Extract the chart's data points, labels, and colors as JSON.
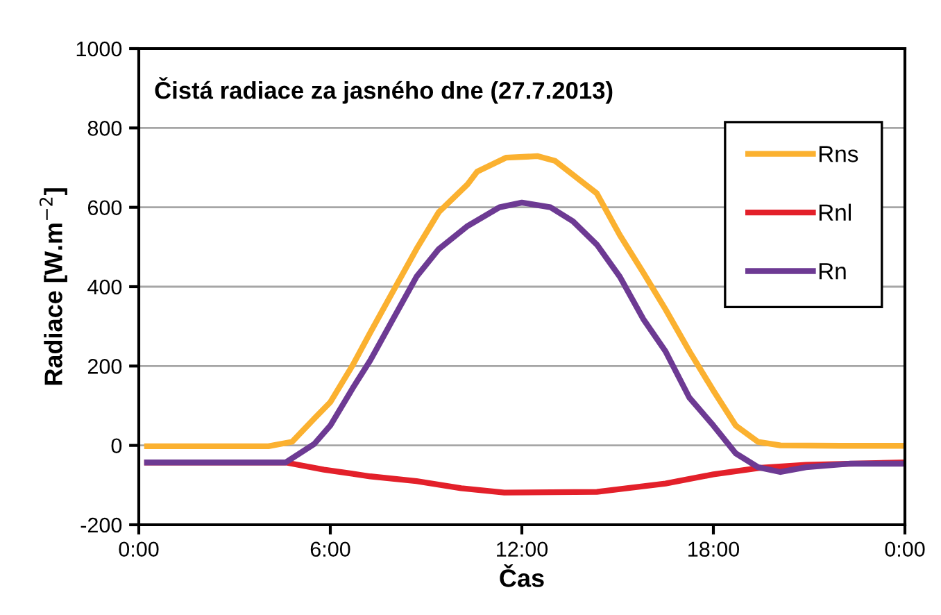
{
  "chart_data": {
    "type": "line",
    "title": "Čistá radiace za jasného dne (27.7.2013)",
    "xlabel": "Čas",
    "ylabel": "Radiace [W.m$^{−2}$]",
    "xlim": [
      0,
      24
    ],
    "xticks": [
      {
        "value": 0,
        "label": "0:00"
      },
      {
        "value": 6,
        "label": "6:00"
      },
      {
        "value": 12,
        "label": "12:00"
      },
      {
        "value": 18,
        "label": "18:00"
      },
      {
        "value": 24,
        "label": "0:00"
      }
    ],
    "ylim": [
      -200,
      1000
    ],
    "yticks": [
      -200,
      0,
      200,
      400,
      600,
      800,
      1000
    ],
    "grid": "y",
    "legend": "top right",
    "marker": "none",
    "line_style": "solid",
    "series": [
      {
        "name": "Rns",
        "color": "#fbb130",
        "x": [
          0.26,
          2,
          4.06,
          4.8,
          5.5,
          6,
          6.7,
          7.25,
          7.97,
          8.7,
          9.4,
          10.3,
          10.6,
          11.5,
          12.5,
          13.04,
          13.6,
          14.35,
          15.07,
          15.8,
          16.5,
          17.25,
          18,
          18.7,
          19.4,
          20.1,
          22,
          23.9
        ],
        "values": [
          -2,
          -2,
          -2,
          9,
          68,
          109,
          202,
          284,
          389,
          495,
          588,
          658,
          690,
          725,
          729,
          717,
          682,
          635,
          530,
          436,
          343,
          237,
          138,
          50,
          9,
          0,
          -1,
          -1
        ]
      },
      {
        "name": "Rnl",
        "color": "#e3202a",
        "x": [
          0.26,
          2,
          4.6,
          5.8,
          7.25,
          8.7,
          10.1,
          11.45,
          14.35,
          16.5,
          18,
          19.4,
          20.9,
          23.9
        ],
        "values": [
          -43,
          -43,
          -43,
          -61,
          -78,
          -90,
          -108,
          -119,
          -117,
          -96,
          -73,
          -57,
          -49,
          -43
        ]
      },
      {
        "name": "Rn",
        "color": "#6d3a93",
        "x": [
          0.26,
          2,
          4.6,
          5.5,
          6,
          6.7,
          7.25,
          7.97,
          8.7,
          9.4,
          10.3,
          11.3,
          12,
          12.9,
          13.6,
          14.35,
          15.07,
          15.8,
          16.5,
          17.25,
          18,
          18.7,
          19.4,
          20.1,
          20.9,
          22.3,
          23.9
        ],
        "values": [
          -43,
          -43,
          -43,
          4,
          50,
          144,
          214,
          319,
          425,
          495,
          553,
          600,
          612,
          600,
          565,
          506,
          425,
          319,
          237,
          120,
          50,
          -20,
          -55,
          -67,
          -55,
          -46,
          -46
        ]
      }
    ]
  }
}
